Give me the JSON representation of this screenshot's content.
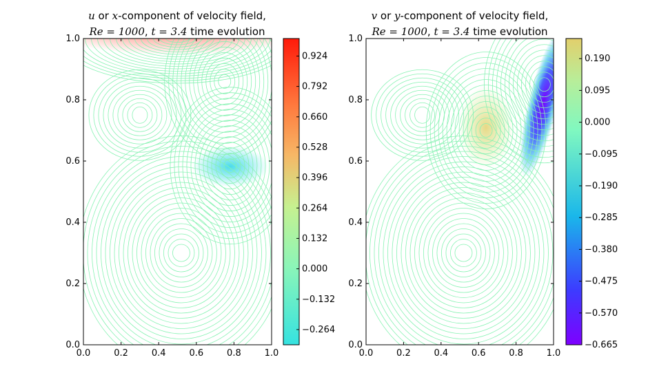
{
  "chart_data": [
    {
      "type": "contour",
      "title_line1": {
        "var": "u",
        "pre": " or ",
        "axis": "x",
        "post": "-component of velocity field,"
      },
      "title_line2": {
        "re": "Re = 1000",
        "sep": ", ",
        "t": "t = 3.4",
        "post": " time evolution"
      },
      "xlim": [
        0.0,
        1.0
      ],
      "ylim": [
        0.0,
        1.0
      ],
      "xticks": [
        "0.0",
        "0.2",
        "0.4",
        "0.6",
        "0.8",
        "1.0"
      ],
      "yticks": [
        "0.0",
        "0.2",
        "0.4",
        "0.6",
        "0.8",
        "1.0"
      ],
      "colormap": "rainbow",
      "colorbar": {
        "range": [
          -0.33,
          1.0
        ],
        "ticks": [
          "0.924",
          "0.792",
          "0.660",
          "0.528",
          "0.396",
          "0.264",
          "0.132",
          "0.000",
          "−0.132",
          "−0.264"
        ],
        "values": [
          0.924,
          0.792,
          0.66,
          0.528,
          0.396,
          0.264,
          0.132,
          0.0,
          -0.132,
          -0.264
        ]
      },
      "features": [
        {
          "kind": "minimum",
          "x": 0.78,
          "y": 0.585,
          "value": -0.3
        },
        {
          "kind": "local",
          "x": 0.75,
          "y": 0.86,
          "value": 0.05
        },
        {
          "kind": "maximum",
          "x": 0.5,
          "y": 1.0,
          "value": 1.0
        }
      ]
    },
    {
      "type": "contour",
      "title_line1": {
        "var": "v",
        "pre": " or ",
        "axis": "y",
        "post": "-component of velocity field,"
      },
      "title_line2": {
        "re": "Re = 1000",
        "sep": ", ",
        "t": "t = 3.4",
        "post": " time evolution"
      },
      "xlim": [
        0.0,
        1.0
      ],
      "ylim": [
        0.0,
        1.0
      ],
      "xticks": [
        "0.0",
        "0.2",
        "0.4",
        "0.6",
        "0.8",
        "1.0"
      ],
      "yticks": [
        "0.0",
        "0.2",
        "0.4",
        "0.6",
        "0.8",
        "1.0"
      ],
      "colormap": "rainbow",
      "colorbar": {
        "range": [
          -0.665,
          0.25
        ],
        "ticks": [
          "0.190",
          "0.095",
          "0.000",
          "−0.095",
          "−0.190",
          "−0.285",
          "−0.380",
          "−0.475",
          "−0.570",
          "−0.665"
        ],
        "values": [
          0.19,
          0.095,
          0.0,
          -0.095,
          -0.19,
          -0.285,
          -0.38,
          -0.475,
          -0.57,
          -0.665
        ]
      },
      "features": [
        {
          "kind": "maximum",
          "x": 0.64,
          "y": 0.7,
          "value": 0.19
        },
        {
          "kind": "minimum",
          "x": 0.95,
          "y": 0.85,
          "value": -0.665
        }
      ]
    }
  ]
}
